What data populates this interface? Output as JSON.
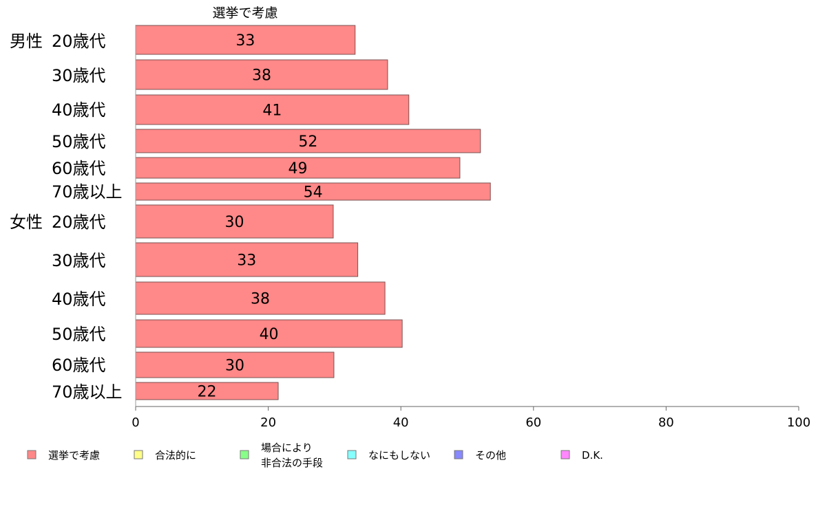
{
  "chart_data": {
    "type": "bar",
    "orientation": "horizontal",
    "title": "選挙で考慮",
    "groups": [
      {
        "label": "男性",
        "rows": [
          0,
          1,
          2,
          3,
          4,
          5
        ]
      },
      {
        "label": "女性",
        "rows": [
          6,
          7,
          8,
          9,
          10,
          11
        ]
      }
    ],
    "categories": [
      "20歳代",
      "30歳代",
      "40歳代",
      "50歳代",
      "60歳代",
      "70歳以上",
      "20歳代",
      "30歳代",
      "40歳代",
      "50歳代",
      "60歳代",
      "70歳以上"
    ],
    "series": [
      {
        "name": "選挙で考慮",
        "color": "#ff8888",
        "values": [
          33.1,
          38.0,
          41.2,
          52.0,
          48.9,
          53.5,
          29.8,
          33.5,
          37.6,
          40.2,
          29.9,
          21.5
        ],
        "labels": [
          "33",
          "38",
          "41",
          "52",
          "49",
          "54",
          "30",
          "33",
          "38",
          "40",
          "30",
          "22"
        ]
      }
    ],
    "xlim": [
      0,
      100
    ],
    "x_ticks": [
      0,
      20,
      40,
      60,
      80,
      100
    ],
    "x_tick_labels": [
      "0",
      "20",
      "40",
      "60",
      "80",
      "100"
    ],
    "xlabel": "",
    "ylabel": "",
    "grid": false,
    "legend_position": "bottom",
    "legend": [
      {
        "lines": [
          "選挙で考慮"
        ],
        "color": "#ff8888"
      },
      {
        "lines": [
          "合法的に"
        ],
        "color": "#ffff88"
      },
      {
        "lines": [
          "場合により",
          "非合法の手段"
        ],
        "color": "#88ff88"
      },
      {
        "lines": [
          "なにもしない"
        ],
        "color": "#88ffff"
      },
      {
        "lines": [
          "その他"
        ],
        "color": "#8888ff"
      },
      {
        "lines": [
          "D.K."
        ],
        "color": "#ff88ff"
      }
    ]
  }
}
